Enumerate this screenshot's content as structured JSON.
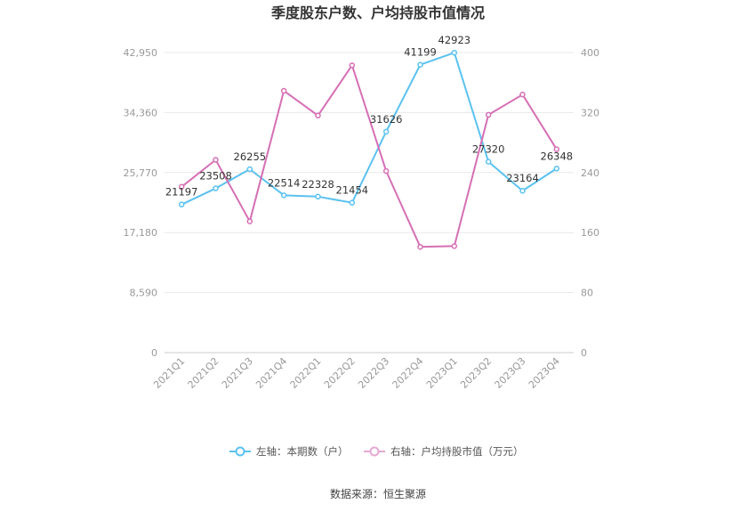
{
  "chart_data": {
    "type": "line",
    "title": "季度股东户数、户均持股市值情况",
    "categories": [
      "2021Q1",
      "2021Q2",
      "2021Q3",
      "2021Q4",
      "2022Q1",
      "2022Q2",
      "2022Q3",
      "2022Q4",
      "2023Q1",
      "2023Q2",
      "2023Q3",
      "2023Q4"
    ],
    "series": [
      {
        "name": "左轴：本期数（户）",
        "axis": "left",
        "color": "#5bc2f0",
        "values": [
          21197,
          23508,
          26255,
          22514,
          22328,
          21454,
          31626,
          41199,
          42923,
          27320,
          23164,
          26348
        ],
        "labels": [
          "21197",
          "23508",
          "26255",
          "22514",
          "22328",
          "21454",
          "31626",
          "41199",
          "42923",
          "27320",
          "23164",
          "26348"
        ]
      },
      {
        "name": "右轴：户均持股市值（万元）",
        "axis": "right",
        "color": "#d66fb4",
        "values": [
          221,
          257,
          175,
          349,
          316,
          383,
          242,
          141,
          142,
          317,
          344,
          271
        ]
      }
    ],
    "y_left": {
      "ticks": [
        "0",
        "8,590",
        "17,180",
        "25,770",
        "34,360",
        "42,950"
      ],
      "ylim": [
        0,
        42950
      ]
    },
    "y_right": {
      "ticks": [
        "0",
        "80",
        "160",
        "240",
        "320",
        "400"
      ],
      "ylim": [
        0,
        400
      ]
    },
    "grid": true,
    "legend_position": "bottom"
  },
  "footer": {
    "source": "数据来源：恒生聚源"
  }
}
